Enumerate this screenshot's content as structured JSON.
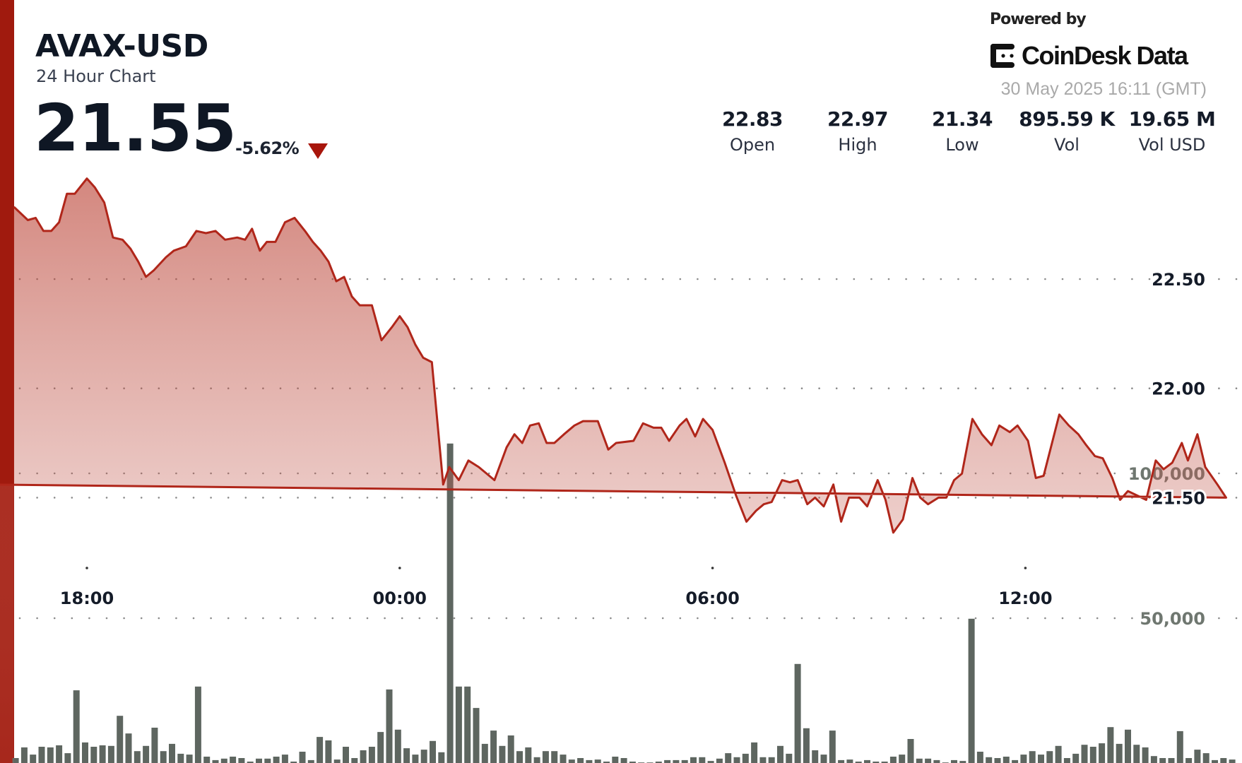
{
  "header": {
    "symbol": "AVAX-USD",
    "subtitle": "24 Hour Chart",
    "price": "21.55",
    "change": "-5.62%",
    "change_direction_icon": "triangle-down-icon",
    "powered_by": "Powered by",
    "brand": "CoinDesk Data",
    "timestamp": "30 May 2025 16:11 (GMT)"
  },
  "stats": [
    {
      "value": "22.83",
      "label": "Open"
    },
    {
      "value": "22.97",
      "label": "High"
    },
    {
      "value": "21.34",
      "label": "Low"
    },
    {
      "value": "895.59 K",
      "label": "Vol"
    },
    {
      "value": "19.65 M",
      "label": "Vol USD"
    }
  ],
  "colors": {
    "accent": "#a01a0e",
    "line": "#b0261a",
    "volume_bar": "#5e6660",
    "down": "#a8160c"
  },
  "chart_data": {
    "type": "line",
    "title": "",
    "xlabel": "",
    "ylabel": "",
    "x_range": [
      "16:36",
      "16:09"
    ],
    "x_ticks": [
      "18:00",
      "00:00",
      "06:00",
      "12:00"
    ],
    "y_ticks": [
      "22.50",
      "22.00",
      "21.50"
    ],
    "y_tick_values": [
      22.5,
      22.0,
      21.5
    ],
    "volume_ticks": [
      "100,000",
      "50,000"
    ],
    "volume_tick_values": [
      100000,
      50000
    ],
    "grid": "dotted horizontal",
    "series": [
      {
        "kind": "price",
        "points": [
          [
            "16:36",
            22.83
          ],
          [
            "16:52",
            22.77
          ],
          [
            "17:01",
            22.78
          ],
          [
            "17:10",
            22.72
          ],
          [
            "17:19",
            22.72
          ],
          [
            "17:28",
            22.76
          ],
          [
            "17:37",
            22.89
          ],
          [
            "17:46",
            22.89
          ],
          [
            "18:00",
            22.96
          ],
          [
            "18:09",
            22.92
          ],
          [
            "18:20",
            22.85
          ],
          [
            "18:30",
            22.69
          ],
          [
            "18:41",
            22.68
          ],
          [
            "18:50",
            22.64
          ],
          [
            "18:59",
            22.58
          ],
          [
            "19:08",
            22.51
          ],
          [
            "19:17",
            22.54
          ],
          [
            "19:31",
            22.6
          ],
          [
            "19:40",
            22.63
          ],
          [
            "19:54",
            22.65
          ],
          [
            "20:06",
            22.72
          ],
          [
            "20:17",
            22.71
          ],
          [
            "20:28",
            22.72
          ],
          [
            "20:39",
            22.68
          ],
          [
            "20:53",
            22.69
          ],
          [
            "21:02",
            22.68
          ],
          [
            "21:10",
            22.73
          ],
          [
            "21:19",
            22.63
          ],
          [
            "21:27",
            22.67
          ],
          [
            "21:37",
            22.67
          ],
          [
            "21:48",
            22.76
          ],
          [
            "21:59",
            22.78
          ],
          [
            "22:11",
            22.72
          ],
          [
            "22:20",
            22.67
          ],
          [
            "22:29",
            22.63
          ],
          [
            "22:38",
            22.58
          ],
          [
            "22:47",
            22.49
          ],
          [
            "22:56",
            22.51
          ],
          [
            "23:05",
            22.42
          ],
          [
            "23:14",
            22.38
          ],
          [
            "23:28",
            22.38
          ],
          [
            "23:39",
            22.22
          ],
          [
            "23:51",
            22.28
          ],
          [
            "00:00",
            22.33
          ],
          [
            "00:09",
            22.28
          ],
          [
            "00:18",
            22.2
          ],
          [
            "00:27",
            22.14
          ],
          [
            "00:37",
            22.12
          ],
          [
            "00:50",
            21.56
          ],
          [
            "00:57",
            21.64
          ],
          [
            "01:08",
            21.58
          ],
          [
            "01:19",
            21.67
          ],
          [
            "01:31",
            21.64
          ],
          [
            "01:49",
            21.58
          ],
          [
            "02:03",
            21.73
          ],
          [
            "02:12",
            21.79
          ],
          [
            "02:21",
            21.75
          ],
          [
            "02:30",
            21.83
          ],
          [
            "02:40",
            21.84
          ],
          [
            "02:49",
            21.75
          ],
          [
            "02:58",
            21.75
          ],
          [
            "03:09",
            21.79
          ],
          [
            "03:21",
            21.83
          ],
          [
            "03:31",
            21.85
          ],
          [
            "03:48",
            21.85
          ],
          [
            "04:00",
            21.72
          ],
          [
            "04:09",
            21.75
          ],
          [
            "04:29",
            21.76
          ],
          [
            "04:40",
            21.84
          ],
          [
            "04:52",
            21.82
          ],
          [
            "05:01",
            21.82
          ],
          [
            "05:10",
            21.76
          ],
          [
            "05:22",
            21.83
          ],
          [
            "05:30",
            21.86
          ],
          [
            "05:40",
            21.78
          ],
          [
            "05:49",
            21.86
          ],
          [
            "06:00",
            21.81
          ],
          [
            "06:14",
            21.66
          ],
          [
            "06:27",
            21.51
          ],
          [
            "06:39",
            21.39
          ],
          [
            "06:50",
            21.44
          ],
          [
            "06:59",
            21.47
          ],
          [
            "07:08",
            21.48
          ],
          [
            "07:20",
            21.58
          ],
          [
            "07:29",
            21.57
          ],
          [
            "07:38",
            21.58
          ],
          [
            "07:49",
            21.47
          ],
          [
            "07:58",
            21.5
          ],
          [
            "08:08",
            21.46
          ],
          [
            "08:19",
            21.56
          ],
          [
            "08:28",
            21.39
          ],
          [
            "08:37",
            21.5
          ],
          [
            "08:49",
            21.5
          ],
          [
            "08:58",
            21.46
          ],
          [
            "09:10",
            21.58
          ],
          [
            "09:19",
            21.49
          ],
          [
            "09:28",
            21.34
          ],
          [
            "09:39",
            21.4
          ],
          [
            "09:50",
            21.59
          ],
          [
            "09:59",
            21.5
          ],
          [
            "10:08",
            21.47
          ],
          [
            "10:20",
            21.5
          ],
          [
            "10:29",
            21.5
          ],
          [
            "10:38",
            21.58
          ],
          [
            "10:47",
            21.61
          ],
          [
            "10:59",
            21.86
          ],
          [
            "11:10",
            21.79
          ],
          [
            "11:21",
            21.74
          ],
          [
            "11:30",
            21.83
          ],
          [
            "11:42",
            21.8
          ],
          [
            "11:51",
            21.83
          ],
          [
            "12:03",
            21.76
          ],
          [
            "12:12",
            21.59
          ],
          [
            "12:21",
            21.6
          ],
          [
            "12:39",
            21.88
          ],
          [
            "12:50",
            21.83
          ],
          [
            "13:01",
            21.79
          ],
          [
            "13:10",
            21.74
          ],
          [
            "13:20",
            21.69
          ],
          [
            "13:29",
            21.68
          ],
          [
            "13:40",
            21.59
          ],
          [
            "13:49",
            21.49
          ],
          [
            "13:58",
            21.53
          ],
          [
            "14:19",
            21.49
          ],
          [
            "14:30",
            21.67
          ],
          [
            "14:39",
            21.63
          ],
          [
            "14:49",
            21.66
          ],
          [
            "15:00",
            21.75
          ],
          [
            "15:07",
            21.67
          ],
          [
            "15:18",
            21.79
          ],
          [
            "15:27",
            21.64
          ],
          [
            "15:41",
            21.56
          ],
          [
            "15:51",
            21.5
          ],
          [
            "16:00",
            21.56
          ],
          [
            "16:09",
            21.55
          ]
        ]
      },
      {
        "kind": "volume",
        "type": "bar",
        "start": "16:38",
        "interval_minutes": 10,
        "values": [
          1700,
          5400,
          2900,
          5600,
          5400,
          6100,
          3400,
          25100,
          7100,
          5600,
          6100,
          5900,
          16300,
          10200,
          4100,
          5900,
          12200,
          4100,
          6600,
          3200,
          2900,
          26400,
          2200,
          1000,
          1500,
          2200,
          1700,
          500,
          1500,
          1500,
          2200,
          2900,
          500,
          3900,
          1000,
          9000,
          7800,
          1200,
          5600,
          1700,
          4400,
          5600,
          10700,
          25400,
          11500,
          5100,
          2900,
          4600,
          7600,
          3700,
          110300,
          26400,
          26400,
          19000,
          6600,
          11200,
          5900,
          9500,
          4100,
          5400,
          2000,
          4100,
          4100,
          2900,
          1200,
          1700,
          1000,
          1200,
          500,
          2200,
          1700,
          500,
          200,
          200,
          500,
          1000,
          1000,
          1000,
          2000,
          2000,
          700,
          1500,
          3400,
          2000,
          3200,
          7100,
          2000,
          2000,
          5900,
          3200,
          34200,
          12000,
          4400,
          2900,
          11200,
          1000,
          1200,
          500,
          1000,
          500,
          500,
          2200,
          2900,
          8300,
          1500,
          1500,
          1000,
          200,
          1000,
          700,
          49800,
          3900,
          2000,
          1700,
          2200,
          1000,
          2900,
          4100,
          2900,
          4100,
          5900,
          1700,
          3200,
          6300,
          5600,
          6800,
          12400,
          6600,
          11500,
          6300,
          5400,
          2400,
          1700,
          1700,
          11000,
          1700,
          4600,
          3400,
          1000,
          1700,
          1200
        ]
      }
    ]
  }
}
